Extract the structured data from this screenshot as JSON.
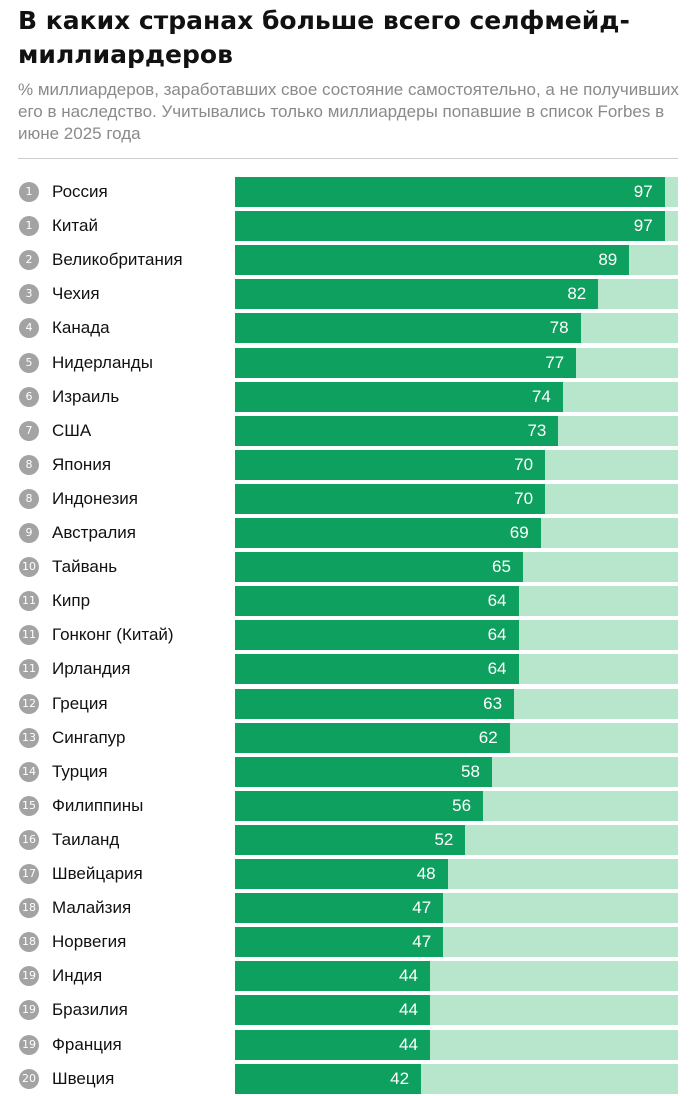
{
  "header": {
    "title": "В каких странах больше всего селфмейд-миллиардеров",
    "subtitle": "% миллиардеров, заработавших свое состояние самостоятельно, а не получивших его в наследство. Учитывались только миллиардеры попавшие в список Forbes в июне 2025 года"
  },
  "colors": {
    "bar": "#0ea05e",
    "track": "#b7e6cd",
    "rank_badge": "#a3a3a3"
  },
  "chart_data": {
    "type": "bar",
    "orientation": "horizontal",
    "title": "В каких странах больше всего селфмейд-миллиардеров",
    "xlim": [
      0,
      100
    ],
    "ranks": [
      1,
      1,
      2,
      3,
      4,
      5,
      6,
      7,
      8,
      8,
      9,
      10,
      11,
      11,
      11,
      12,
      13,
      14,
      15,
      16,
      17,
      18,
      18,
      19,
      19,
      19,
      20
    ],
    "categories": [
      "Россия",
      "Китай",
      "Великобритания",
      "Чехия",
      "Канада",
      "Нидерланды",
      "Израиль",
      "США",
      "Япония",
      "Индонезия",
      "Австралия",
      "Тайвань",
      "Кипр",
      "Гонконг (Китай)",
      "Ирландия",
      "Греция",
      "Сингапур",
      "Турция",
      "Филиппины",
      "Таиланд",
      "Швейцария",
      "Малайзия",
      "Норвегия",
      "Индия",
      "Бразилия",
      "Франция",
      "Швеция"
    ],
    "values": [
      97,
      97,
      89,
      82,
      78,
      77,
      74,
      73,
      70,
      70,
      69,
      65,
      64,
      64,
      64,
      63,
      62,
      58,
      56,
      52,
      48,
      47,
      47,
      44,
      44,
      44,
      42
    ]
  }
}
